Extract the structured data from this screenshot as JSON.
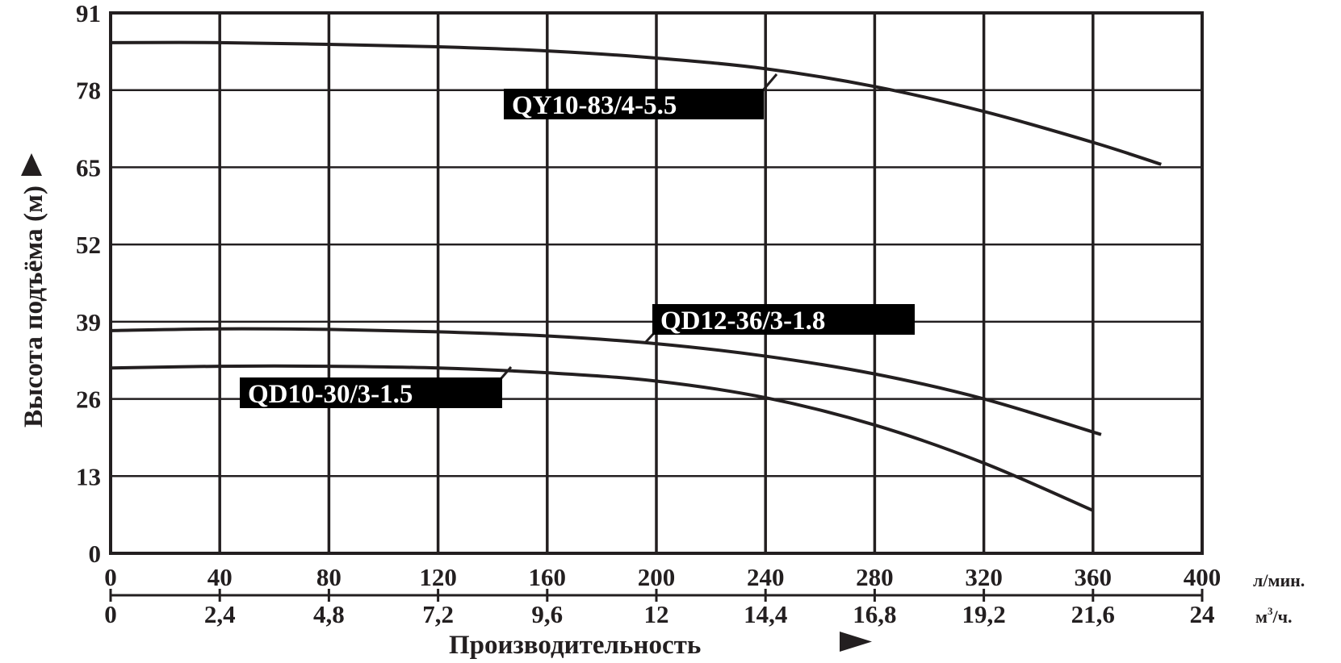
{
  "chart_data": {
    "type": "line",
    "title": "",
    "xlabel": "Производительность",
    "xlabel_arrow": "►",
    "ylabel": "Высота подъёма (м)",
    "ylabel_arrow": "▲",
    "x_unit_primary": "л/мин.",
    "x_unit_secondary": "м³/ч.",
    "x_unit_secondary_base": "м",
    "x_unit_secondary_sup": "3",
    "x_unit_secondary_tail": "/ч.",
    "xlim": [
      0,
      400
    ],
    "ylim": [
      0,
      91
    ],
    "x_ticks": [
      "0",
      "40",
      "80",
      "120",
      "160",
      "200",
      "240",
      "280",
      "320",
      "360",
      "400"
    ],
    "x_ticks_secondary": [
      "0",
      "2,4",
      "4,8",
      "7,2",
      "9,6",
      "12",
      "14,4",
      "16,8",
      "19,2",
      "21,6",
      "24"
    ],
    "y_ticks": [
      "0",
      "13",
      "26",
      "39",
      "52",
      "65",
      "78",
      "91"
    ],
    "grid": true,
    "legend_position": "inline labels",
    "series": [
      {
        "name": "QY10-83/4-5.5",
        "x": [
          0,
          40,
          80,
          120,
          160,
          200,
          240,
          280,
          320,
          360,
          385
        ],
        "values": [
          86,
          86,
          85.7,
          85.3,
          84.6,
          83.4,
          81.6,
          78.6,
          74.4,
          69.2,
          65.5
        ]
      },
      {
        "name": "QD12-36/3-1.8",
        "x": [
          0,
          40,
          80,
          120,
          160,
          200,
          240,
          280,
          320,
          363
        ],
        "values": [
          37.5,
          37.8,
          37.7,
          37.3,
          36.6,
          35.3,
          33.2,
          30.2,
          26,
          20
        ]
      },
      {
        "name": "QD10-30/3-1.5",
        "x": [
          0,
          40,
          80,
          120,
          160,
          200,
          240,
          280,
          320,
          360
        ],
        "values": [
          31.2,
          31.5,
          31.5,
          31.2,
          30.4,
          29,
          26.2,
          21.6,
          15.2,
          7.2
        ]
      }
    ]
  },
  "labels": {
    "qy10": "QY10-83/4-5.5",
    "qd12": "QD12-36/3-1.8",
    "qd10": "QD10-30/3-1.5"
  },
  "colors": {
    "ink": "#231f20",
    "background": "#ffffff",
    "label_text": "#ffffff"
  }
}
